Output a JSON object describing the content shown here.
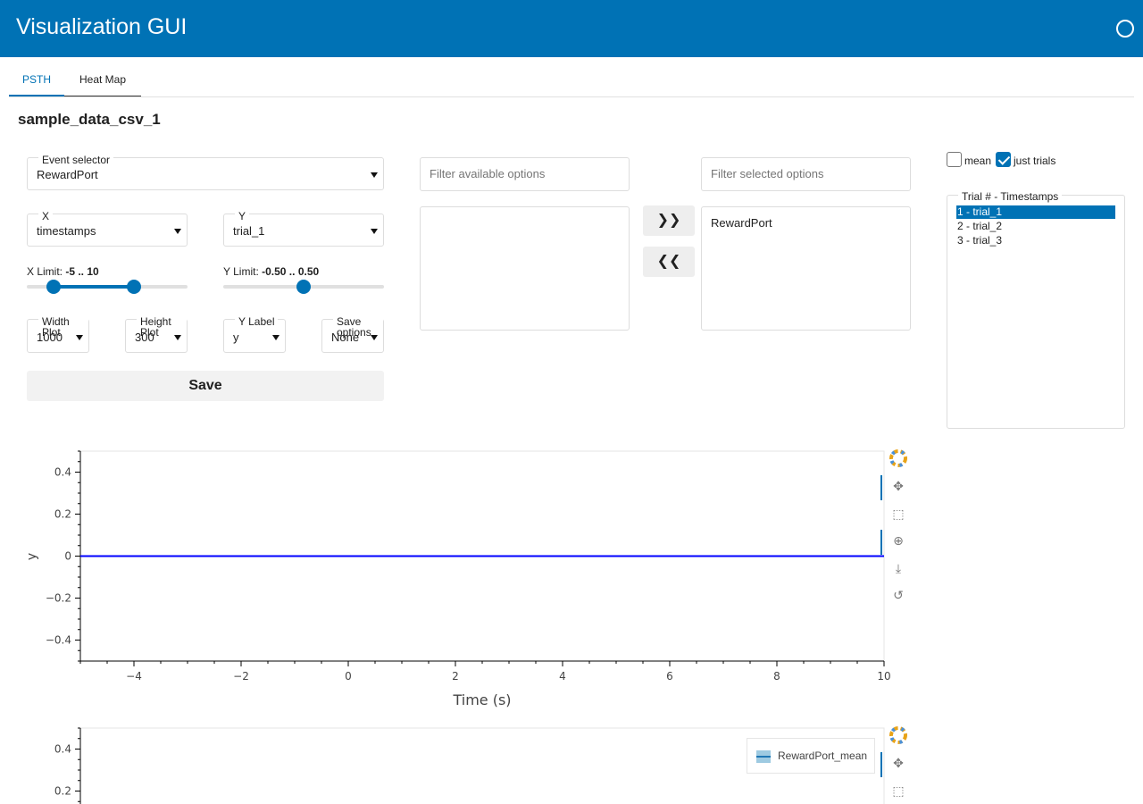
{
  "app": {
    "title": "Visualization GUI"
  },
  "tabs": [
    {
      "label": "PSTH"
    },
    {
      "label": "Heat Map"
    }
  ],
  "page_title": "sample_data_csv_1",
  "controls": {
    "event_selector": {
      "label": "Event selector",
      "value": "RewardPort"
    },
    "x_select": {
      "label": "X",
      "value": "timestamps"
    },
    "y_select": {
      "label": "Y",
      "value": "trial_1"
    },
    "x_limit": {
      "label": "X Limit: ",
      "value_text": "-5 .. 10"
    },
    "y_limit": {
      "label": "Y Limit: ",
      "value_text": "-0.50 .. 0.50"
    },
    "width_plot": {
      "label": "Width Plot",
      "value": "1000"
    },
    "height_plot": {
      "label": "Height Plot",
      "value": "300"
    },
    "y_label": {
      "label": "Y Label",
      "value": "y"
    },
    "save_options": {
      "label": "Save options",
      "value": "None"
    },
    "save_label": "Save"
  },
  "multiselect": {
    "filter_available_placeholder": "Filter available options",
    "filter_selected_placeholder": "Filter selected options",
    "available": [],
    "selected": [
      "RewardPort"
    ],
    "add_label": "❯❯",
    "remove_label": "❮❮"
  },
  "options": {
    "mean": {
      "label": "mean",
      "checked": false
    },
    "just_trials": {
      "label": "just trials",
      "checked": true
    }
  },
  "trials": {
    "label": "Trial # - Timestamps",
    "items": [
      {
        "label": "1 - trial_1",
        "selected": true
      },
      {
        "label": "2 - trial_2",
        "selected": false
      },
      {
        "label": "3 - trial_3",
        "selected": false
      }
    ]
  },
  "chart_data": [
    {
      "type": "line",
      "xlabel": "Time (s)",
      "ylabel": "y",
      "xlim": [
        -5,
        10
      ],
      "ylim": [
        -0.5,
        0.5
      ],
      "x_ticks": [
        -4,
        -2,
        0,
        2,
        4,
        6,
        8,
        10
      ],
      "y_ticks": [
        -0.4,
        -0.2,
        0,
        0.2,
        0.4
      ],
      "series": [
        {
          "color": "#0000ff",
          "x": [
            -5,
            10
          ],
          "y": [
            0,
            0
          ]
        }
      ]
    },
    {
      "type": "area",
      "xlim": [
        -5,
        10
      ],
      "ylim": [
        -0.5,
        0.5
      ],
      "y_ticks": [
        0.2,
        0.4
      ],
      "legend_position": "top-right",
      "series": [
        {
          "name": "RewardPort_mean",
          "color": "#1f77b4",
          "fill": "#9ecae1"
        }
      ]
    }
  ],
  "colors": {
    "header": "#0072b5",
    "accent": "#0072b5",
    "line": "#0000ff"
  }
}
